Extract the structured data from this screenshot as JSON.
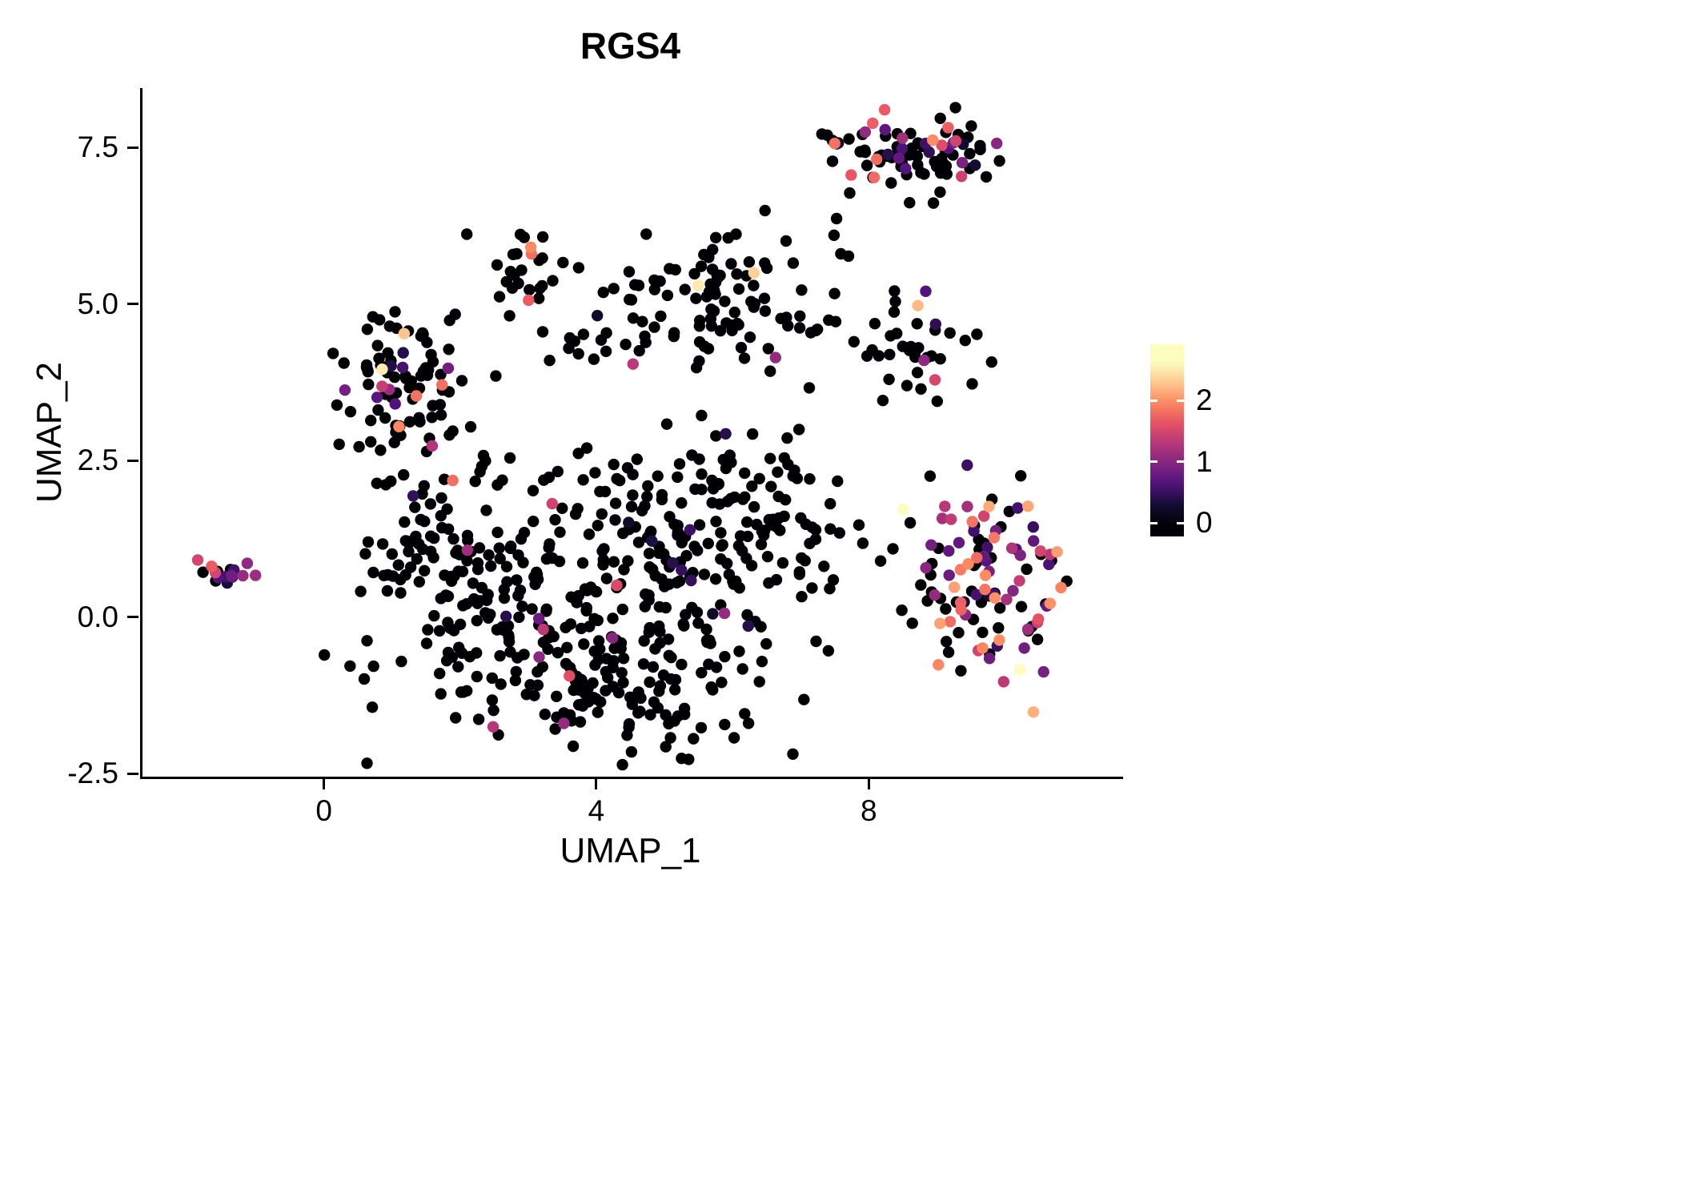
{
  "chart_data": {
    "type": "scatter",
    "title": "RGS4",
    "xlabel": "UMAP_1",
    "ylabel": "UMAP_2",
    "x_range": [
      -2.7,
      11.7
    ],
    "y_range": [
      -2.55,
      8.45
    ],
    "grid": false,
    "legend_position": "right",
    "x_ticks": [
      {
        "label": "0",
        "value": 0
      },
      {
        "label": "4",
        "value": 4
      },
      {
        "label": "8",
        "value": 8
      }
    ],
    "y_ticks": [
      {
        "label": "7.5",
        "value": 7.5
      },
      {
        "label": "5.0",
        "value": 5.0
      },
      {
        "label": "2.5",
        "value": 2.5
      },
      {
        "label": "0.0",
        "value": 0.0
      },
      {
        "label": "-2.5",
        "value": -2.5
      }
    ],
    "legend": {
      "ticks": [
        {
          "label": "2",
          "value": 2
        },
        {
          "label": "1",
          "value": 1
        },
        {
          "label": "0",
          "value": 0
        }
      ],
      "color_scale_max": 2.6,
      "bar_top_value": 2.9,
      "bar_bottom_value": -0.2
    },
    "point_radius": 7.2,
    "point_count_estimate": 1054,
    "seed": 11,
    "colormap_name": "magma",
    "colormap_stops": [
      {
        "t": 0.0,
        "color": "#000004"
      },
      {
        "t": 0.125,
        "color": "#140e36"
      },
      {
        "t": 0.25,
        "color": "#51127c"
      },
      {
        "t": 0.375,
        "color": "#822681"
      },
      {
        "t": 0.5,
        "color": "#b73779"
      },
      {
        "t": 0.625,
        "color": "#e65164"
      },
      {
        "t": 0.75,
        "color": "#fb8861"
      },
      {
        "t": 0.875,
        "color": "#fec68f"
      },
      {
        "t": 1.0,
        "color": "#fcfdbf"
      }
    ],
    "clusters": [
      {
        "name": "top-right",
        "cx": 8.6,
        "cy": 7.45,
        "sx": 0.55,
        "sy": 0.28,
        "n": 88,
        "frac": 0.28,
        "mean": 1.1
      },
      {
        "name": "top-right-stragglers",
        "cx": 8.3,
        "cy": 6.2,
        "sx": 0.6,
        "sy": 0.35,
        "n": 6,
        "frac": 0.0,
        "mean": 0.0
      },
      {
        "name": "upper-left-small",
        "cx": 2.9,
        "cy": 5.55,
        "sx": 0.3,
        "sy": 0.33,
        "n": 26,
        "frac": 0.12,
        "mean": 1.7
      },
      {
        "name": "top-middle",
        "cx": 5.85,
        "cy": 5.1,
        "sx": 0.55,
        "sy": 0.55,
        "n": 78,
        "frac": 0.05,
        "mean": 1.4
      },
      {
        "name": "mid-band",
        "cx": 4.1,
        "cy": 4.4,
        "sx": 0.65,
        "sy": 0.2,
        "n": 22,
        "frac": 0.05,
        "mean": 0.9
      },
      {
        "name": "mid-pair",
        "cx": 4.4,
        "cy": 5.2,
        "sx": 0.3,
        "sy": 0.12,
        "n": 5,
        "frac": 0.0,
        "mean": 0.0
      },
      {
        "name": "right-mid",
        "cx": 8.55,
        "cy": 4.3,
        "sx": 0.48,
        "sy": 0.45,
        "n": 38,
        "frac": 0.13,
        "mean": 1.4
      },
      {
        "name": "right-mid-bridge",
        "cx": 7.2,
        "cy": 4.7,
        "sx": 0.35,
        "sy": 0.3,
        "n": 10,
        "frac": 0.1,
        "mean": 1.6
      },
      {
        "name": "left",
        "cx": 1.2,
        "cy": 3.7,
        "sx": 0.52,
        "sy": 0.6,
        "n": 92,
        "frac": 0.17,
        "mean": 1.3
      },
      {
        "name": "far-left-small",
        "cx": -1.5,
        "cy": 0.72,
        "sx": 0.24,
        "sy": 0.1,
        "n": 16,
        "frac": 0.5,
        "mean": 1.0
      },
      {
        "name": "central-left-arm",
        "cx": 1.5,
        "cy": 1.4,
        "sx": 0.5,
        "sy": 0.55,
        "n": 42,
        "frac": 0.08,
        "mean": 0.9
      },
      {
        "name": "central-a",
        "cx": 3.3,
        "cy": -0.6,
        "sx": 1.15,
        "sy": 0.75,
        "n": 150,
        "frac": 0.06,
        "mean": 0.9
      },
      {
        "name": "central-b",
        "cx": 5.2,
        "cy": 0.6,
        "sx": 1.05,
        "sy": 0.9,
        "n": 150,
        "frac": 0.07,
        "mean": 0.9
      },
      {
        "name": "central-c",
        "cx": 2.3,
        "cy": 0.7,
        "sx": 0.7,
        "sy": 0.8,
        "n": 70,
        "frac": 0.06,
        "mean": 0.8
      },
      {
        "name": "central-top",
        "cx": 4.6,
        "cy": 2.0,
        "sx": 1.2,
        "sy": 0.45,
        "n": 55,
        "frac": 0.08,
        "mean": 0.9
      },
      {
        "name": "central-right",
        "cx": 6.6,
        "cy": 1.7,
        "sx": 0.55,
        "sy": 0.8,
        "n": 48,
        "frac": 0.08,
        "mean": 0.9
      },
      {
        "name": "central-bottom",
        "cx": 4.9,
        "cy": -1.5,
        "sx": 0.85,
        "sy": 0.35,
        "n": 40,
        "frac": 0.05,
        "mean": 0.8
      },
      {
        "name": "bottom-right",
        "cx": 9.75,
        "cy": 0.55,
        "sx": 0.62,
        "sy": 0.85,
        "n": 118,
        "frac": 0.55,
        "mean": 1.2
      }
    ]
  }
}
